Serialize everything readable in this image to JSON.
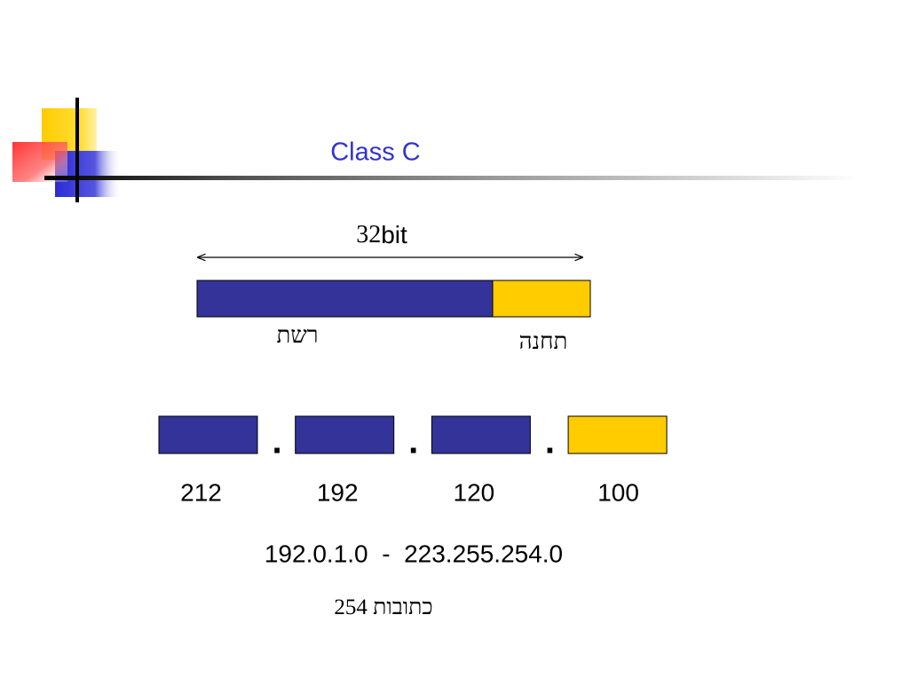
{
  "title": "Class C",
  "width_label": {
    "number": "32",
    "unit": "bit"
  },
  "bar_labels": {
    "network": "רשת",
    "host": "תחנה"
  },
  "octets": [
    {
      "value": "212",
      "separator": "."
    },
    {
      "value": "192",
      "separator": "."
    },
    {
      "value": "120",
      "separator": "."
    },
    {
      "value": "100"
    }
  ],
  "range": "192.0.1.0  -  223.255.254.0",
  "address_count": {
    "number": "254",
    "word": "כתובות"
  }
}
